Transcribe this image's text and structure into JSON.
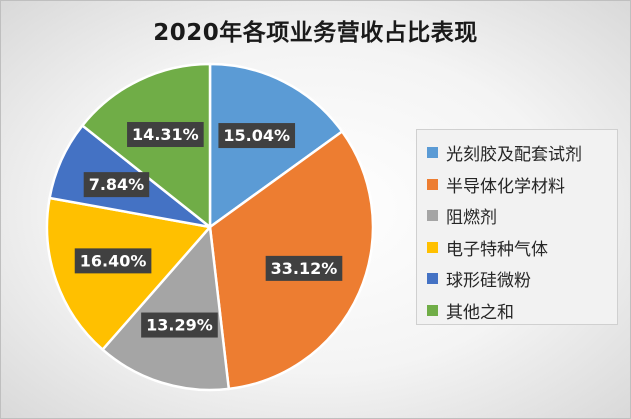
{
  "chart_data": {
    "type": "pie",
    "title": "2020年各项业务营收占比表现",
    "slices": [
      {
        "name": "光刻胶及配套试剂",
        "value": 15.04,
        "label": "15.04%",
        "color": "#5b9bd5"
      },
      {
        "name": "半导体化学材料",
        "value": 33.12,
        "label": "33.12%",
        "color": "#ed7d31"
      },
      {
        "name": "阻燃剂",
        "value": 13.29,
        "label": "13.29%",
        "color": "#a5a5a5"
      },
      {
        "name": "电子特种气体",
        "value": 16.4,
        "label": "16.40%",
        "color": "#ffc000"
      },
      {
        "name": "球形硅微粉",
        "value": 7.84,
        "label": "7.84%",
        "color": "#4472c4"
      },
      {
        "name": "其他之和",
        "value": 14.31,
        "label": "14.31%",
        "color": "#70ad47"
      }
    ],
    "legend_position": "right"
  }
}
